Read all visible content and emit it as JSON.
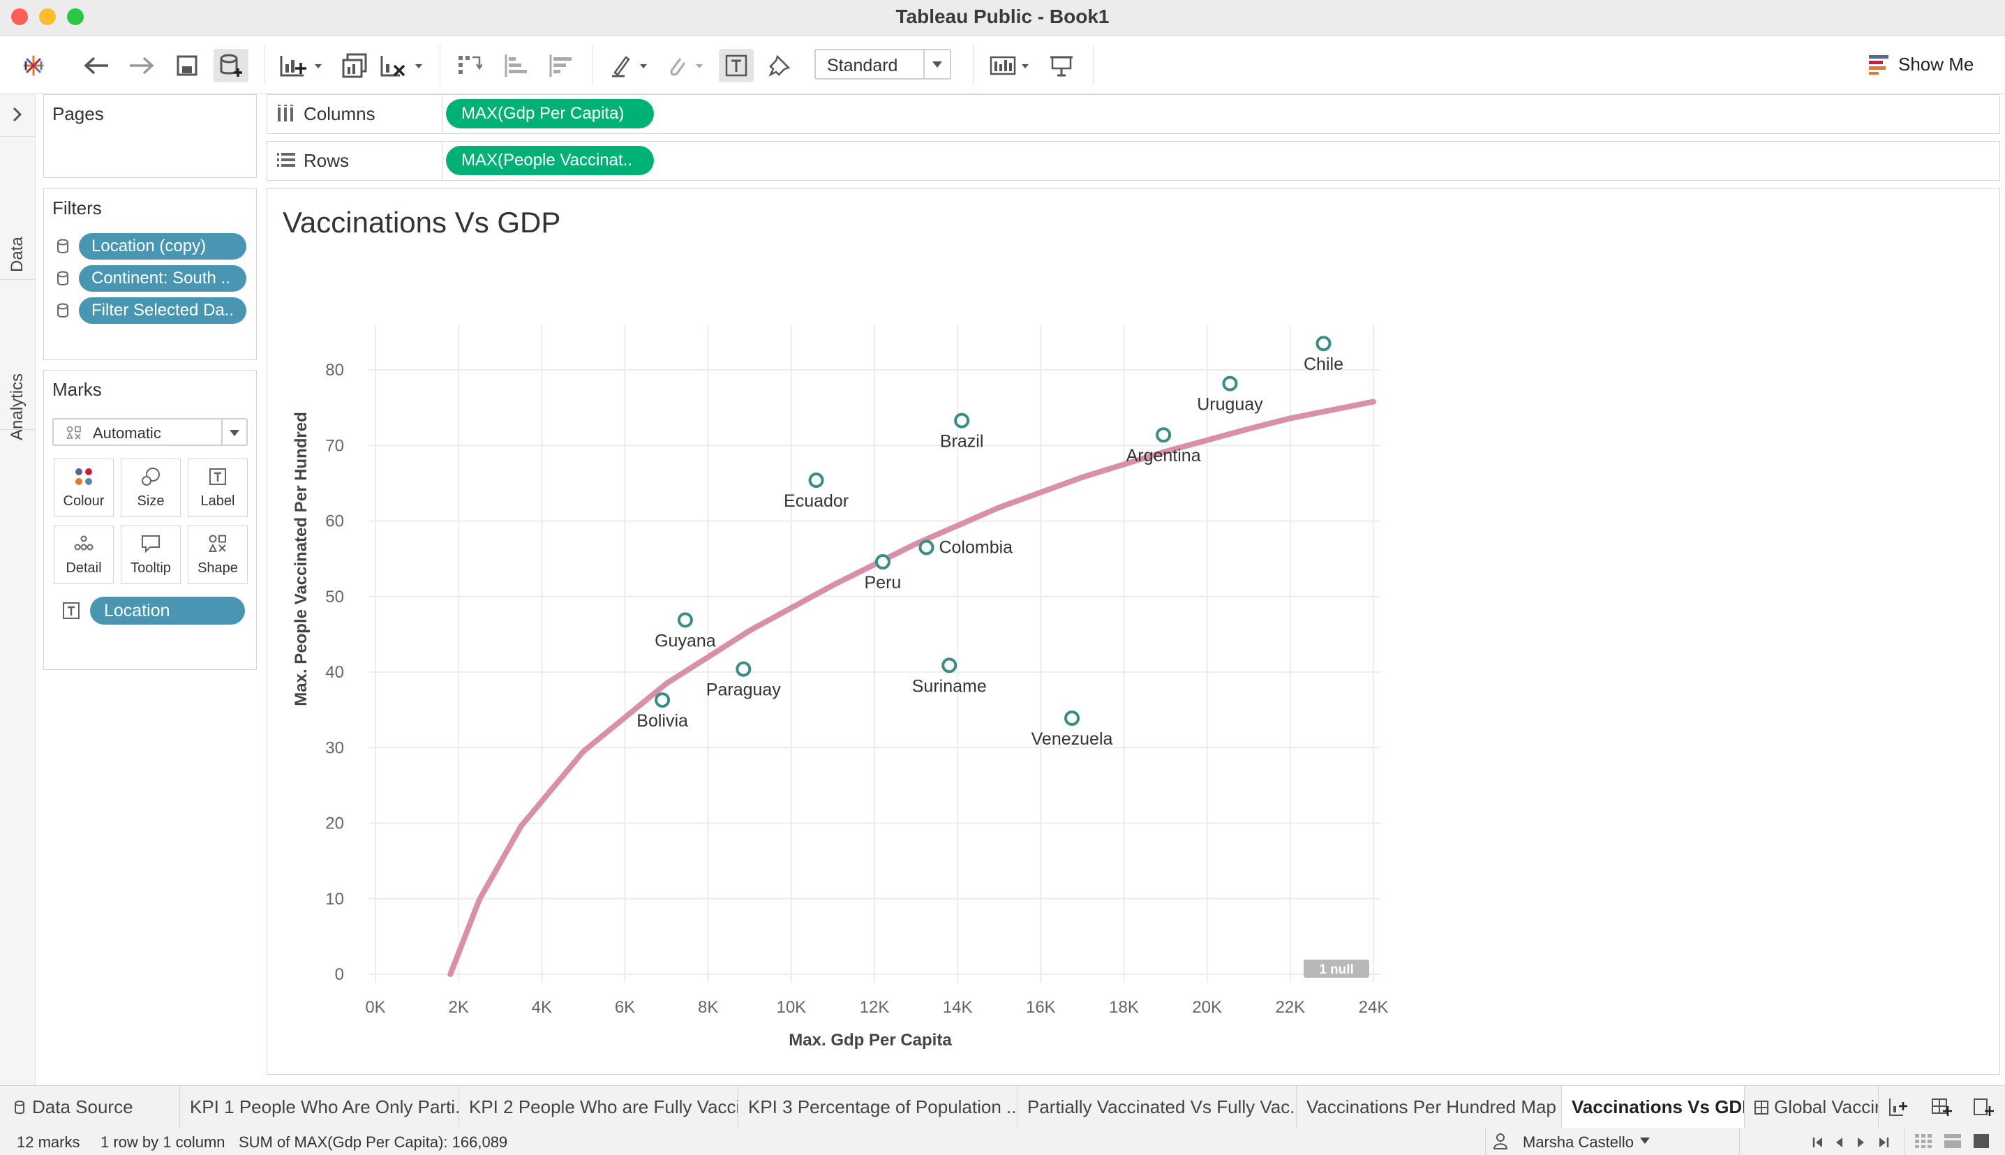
{
  "window": {
    "title": "Tableau Public - Book1"
  },
  "toolbar": {
    "fit_option": "Standard",
    "show_me_label": "Show Me"
  },
  "side_strip": {
    "data_tab": "Data",
    "analytics_tab": "Analytics"
  },
  "pages": {
    "title": "Pages"
  },
  "filters": {
    "title": "Filters",
    "items": [
      "Location (copy)",
      "Continent: South ..",
      "Filter Selected Da.."
    ]
  },
  "marks": {
    "title": "Marks",
    "type": "Automatic",
    "buttons": {
      "colour": "Colour",
      "size": "Size",
      "label": "Label",
      "detail": "Detail",
      "tooltip": "Tooltip",
      "shape": "Shape"
    },
    "label_field": "Location"
  },
  "shelves": {
    "columns_label": "Columns",
    "columns_pill": "MAX(Gdp Per Capita)",
    "rows_label": "Rows",
    "rows_pill": "MAX(People Vaccinat.."
  },
  "viz": {
    "title": "Vaccinations Vs GDP"
  },
  "chart_data": {
    "type": "scatter",
    "title": "Vaccinations Vs GDP",
    "xlabel": "Max. Gdp Per Capita",
    "ylabel": "Max. People Vaccinated Per Hundred",
    "xlim": [
      0,
      24000
    ],
    "ylim": [
      0,
      85
    ],
    "x_ticks": [
      "0K",
      "2K",
      "4K",
      "6K",
      "8K",
      "10K",
      "12K",
      "14K",
      "16K",
      "18K",
      "20K",
      "22K",
      "24K"
    ],
    "y_ticks": [
      "0",
      "10",
      "20",
      "30",
      "40",
      "50",
      "60",
      "70",
      "80"
    ],
    "grid": true,
    "marker_color": "#3a8c86",
    "trend_color": "#d98fa8",
    "trend_type": "logarithmic",
    "null_indicator": "1 null",
    "points": [
      {
        "label": "Chile",
        "x": 22800,
        "y": 83.5
      },
      {
        "label": "Uruguay",
        "x": 20550,
        "y": 78.2
      },
      {
        "label": "Argentina",
        "x": 18950,
        "y": 71.4
      },
      {
        "label": "Brazil",
        "x": 14100,
        "y": 73.3
      },
      {
        "label": "Ecuador",
        "x": 10600,
        "y": 65.4
      },
      {
        "label": "Colombia",
        "x": 13250,
        "y": 56.5
      },
      {
        "label": "Peru",
        "x": 12200,
        "y": 54.6
      },
      {
        "label": "Guyana",
        "x": 7450,
        "y": 46.9
      },
      {
        "label": "Paraguay",
        "x": 8850,
        "y": 40.4
      },
      {
        "label": "Bolivia",
        "x": 6900,
        "y": 36.3
      },
      {
        "label": "Suriname",
        "x": 13800,
        "y": 40.9
      },
      {
        "label": "Venezuela",
        "x": 16750,
        "y": 33.9
      }
    ],
    "trend_line": [
      {
        "x": 1800,
        "y": 0
      },
      {
        "x": 2500,
        "y": 9.9
      },
      {
        "x": 3500,
        "y": 19.6
      },
      {
        "x": 5000,
        "y": 29.5
      },
      {
        "x": 7000,
        "y": 38.5
      },
      {
        "x": 9000,
        "y": 45.5
      },
      {
        "x": 11000,
        "y": 51.5
      },
      {
        "x": 13000,
        "y": 57.0
      },
      {
        "x": 15000,
        "y": 61.8
      },
      {
        "x": 17000,
        "y": 65.8
      },
      {
        "x": 19000,
        "y": 69.2
      },
      {
        "x": 21000,
        "y": 72.2
      },
      {
        "x": 22000,
        "y": 73.6
      },
      {
        "x": 24000,
        "y": 75.8
      }
    ]
  },
  "sheet_tabs": {
    "data_source": "Data Source",
    "tabs": [
      "KPI 1 People Who Are Only Parti...",
      "KPI 2 People Who are Fully Vacci...",
      "KPI 3 Percentage of Population ...",
      "Partially Vaccinated Vs Fully Vac...",
      "Vaccinations Per Hundred Map",
      "Vaccinations Vs GDP",
      "Global Vaccir"
    ],
    "active": "Vaccinations Vs GDP"
  },
  "status": {
    "marks": "12 marks",
    "layout": "1 row by 1 column",
    "sum": "SUM of MAX(Gdp Per Capita): 166,089",
    "user": "Marsha Castello"
  }
}
